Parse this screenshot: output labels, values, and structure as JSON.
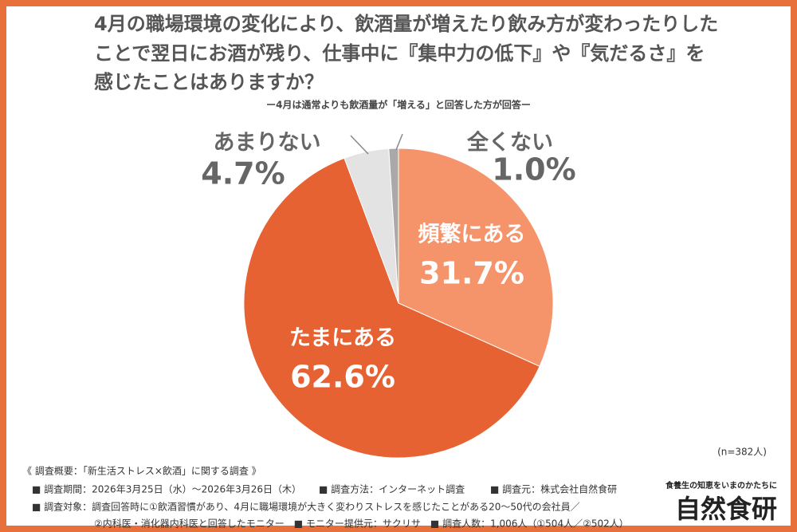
{
  "chart_data": {
    "type": "pie",
    "title_lines": [
      "4月の職場環境の変化により、飲酒量が増えたり飲み方が変わったりした",
      "ことで翌日にお酒が残り、仕事中に『集中力の低下』や『気だるさ』を",
      "感じたことはありますか？"
    ],
    "subtitle": "ー4月は通常よりも飲酒量が「増える」と回答した方が回答ー",
    "categories": [
      "頻繁にある",
      "たまにある",
      "あまりない",
      "全くない"
    ],
    "values": [
      31.7,
      62.6,
      4.7,
      1.0
    ],
    "value_labels": [
      "31.7%",
      "62.6%",
      "4.7%",
      "1.0%"
    ],
    "colors": [
      "#f5936a",
      "#e66233",
      "#e3e3e3",
      "#a9a9a9"
    ],
    "sample_note": "(n=382人)"
  },
  "footer": {
    "heading": "《 調査概要：「新生活ストレス×飲酒」に関する調査 》",
    "period": "■ 調査期間：2026年3月25日（水）～2026年3月26日（木）",
    "method": "■ 調査方法：インターネット調査",
    "source": "■ 調査元：株式会社自然食研",
    "target_lines": [
      "■ 調査対象：調査回答時に①飲酒習慣があり、4月に職場環境が大きく変わりストレスを感じたことがある20～50代の会社員／",
      "②内科医・消化器内科医と回答したモニター　■ モニター提供元：サクリサ　■ 調査人数：1,006人（①504人／②502人）"
    ]
  },
  "logo": {
    "tagline": "食養生の知恵をいまのかたちに",
    "name": "自然食研"
  }
}
